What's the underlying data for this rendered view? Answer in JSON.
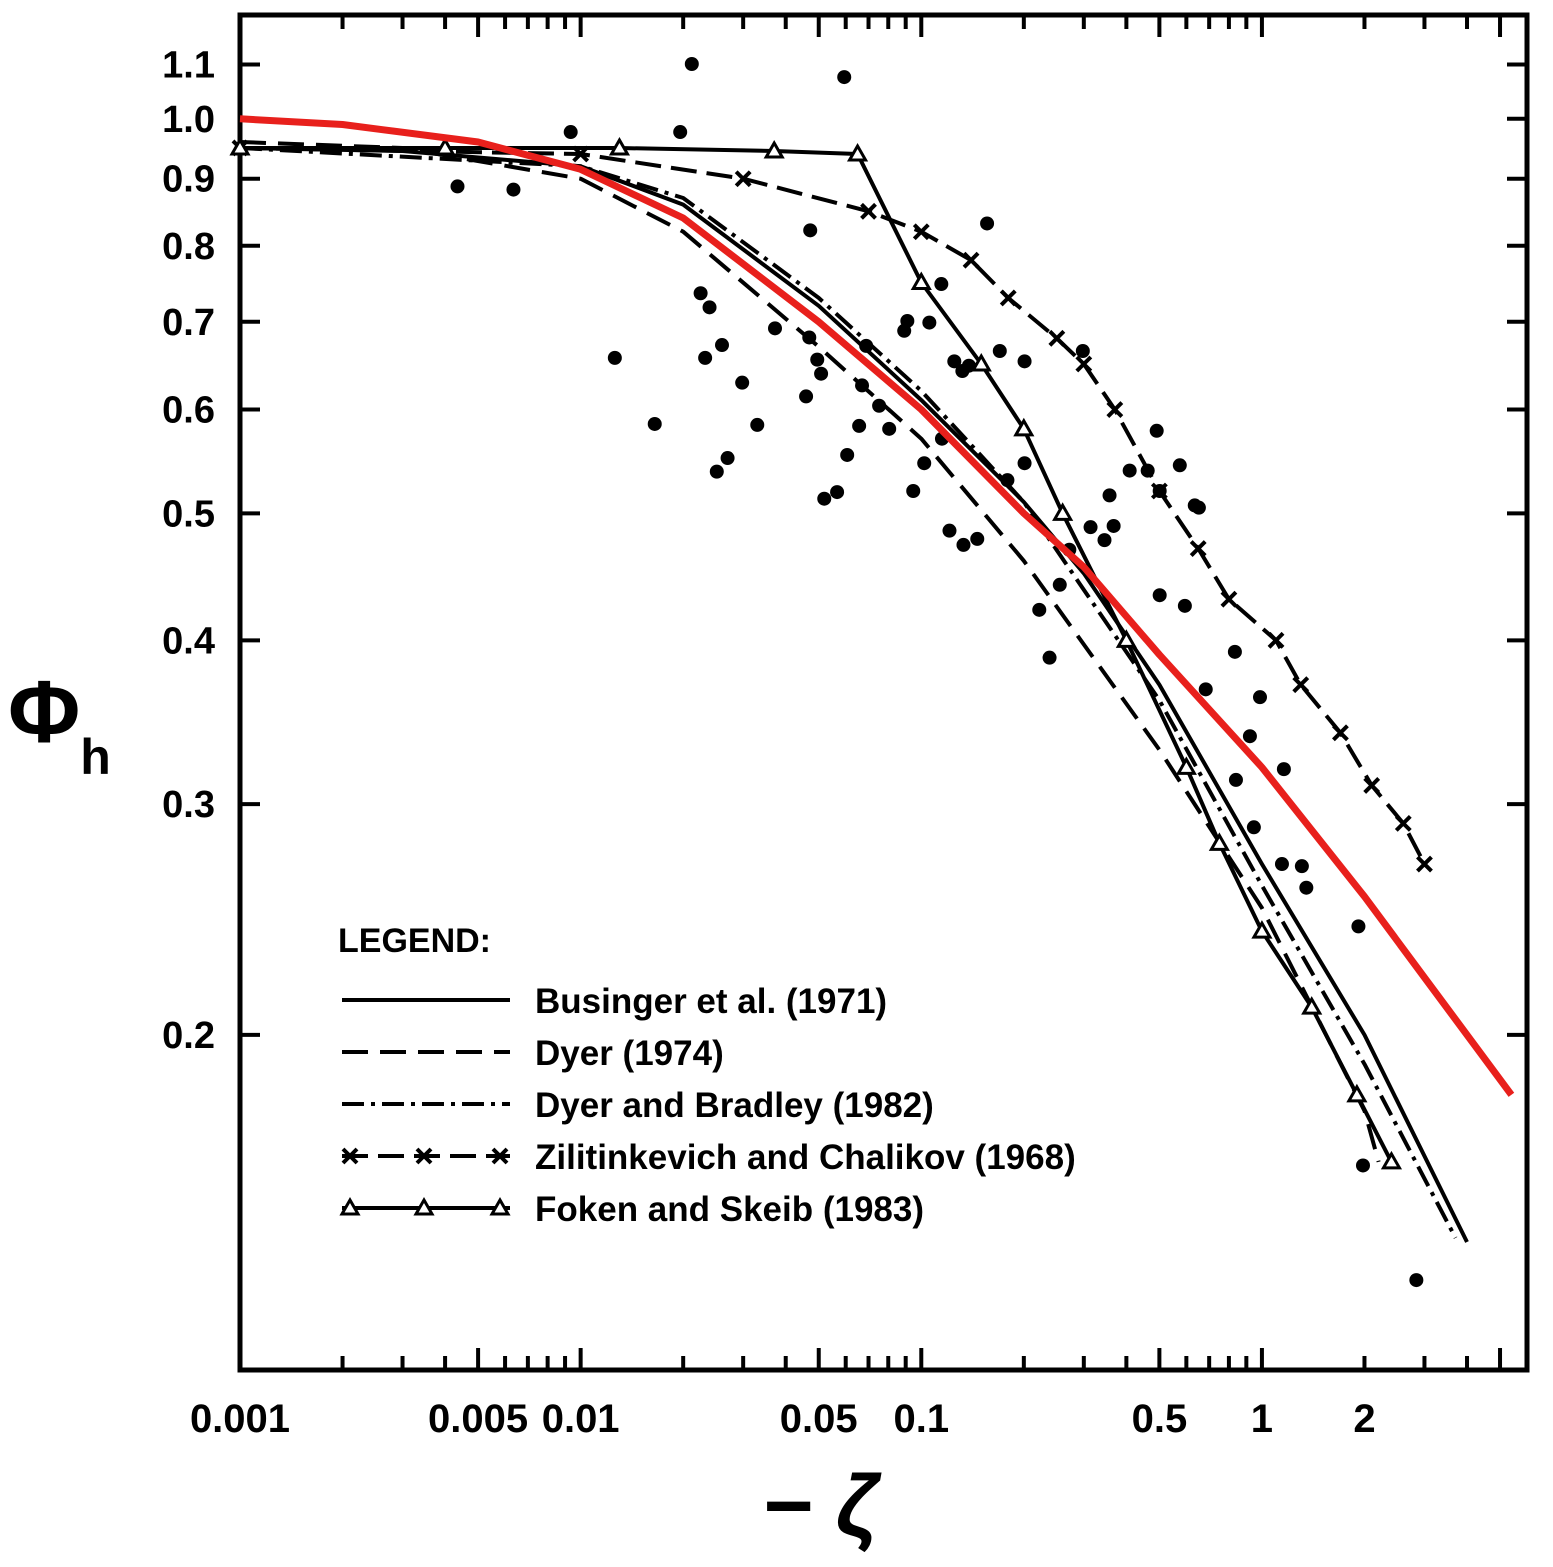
{
  "chart_data": {
    "type": "line",
    "xscale": "log",
    "yscale": "log",
    "xlabel": "− ζ",
    "ylabel": "Φ",
    "ylabel_subscript": "h",
    "xlim": [
      0.001,
      6
    ],
    "ylim": [
      0.111,
      1.2
    ],
    "grid": false,
    "legend_position": "bottom-left",
    "legend_title": "LEGEND:",
    "x_ticks": [
      0.001,
      0.005,
      0.01,
      0.05,
      0.1,
      0.5,
      1,
      2
    ],
    "x_tick_labels": [
      "0.001",
      "0.005",
      "0.01",
      "0.05",
      "0.1",
      "0.5",
      "1",
      "2"
    ],
    "y_ticks": [
      0.2,
      0.3,
      0.4,
      0.5,
      0.6,
      0.7,
      0.8,
      0.9,
      1.0,
      1.1
    ],
    "y_tick_labels": [
      "0.2",
      "0.3",
      "0.4",
      "0.5",
      "0.6",
      "0.7",
      "0.8",
      "0.9",
      "1.0",
      "1.1"
    ],
    "series": [
      {
        "name": "Businger et al. (1971)",
        "style": "solid",
        "color": "#000000",
        "points": [
          [
            0.001,
            0.95
          ],
          [
            0.003,
            0.945
          ],
          [
            0.01,
            0.92
          ],
          [
            0.02,
            0.86
          ],
          [
            0.05,
            0.72
          ],
          [
            0.1,
            0.61
          ],
          [
            0.2,
            0.51
          ],
          [
            0.3,
            0.45
          ],
          [
            0.5,
            0.37
          ],
          [
            1,
            0.27
          ],
          [
            2,
            0.2
          ],
          [
            4,
            0.139
          ]
        ]
      },
      {
        "name": "Dyer (1974)",
        "style": "dashed",
        "color": "#000000",
        "points": [
          [
            0.001,
            0.96
          ],
          [
            0.003,
            0.95
          ],
          [
            0.01,
            0.9
          ],
          [
            0.02,
            0.82
          ],
          [
            0.05,
            0.67
          ],
          [
            0.1,
            0.57
          ],
          [
            0.2,
            0.46
          ],
          [
            0.5,
            0.33
          ],
          [
            1,
            0.25
          ],
          [
            2,
            0.175
          ],
          [
            2.2,
            0.16
          ]
        ]
      },
      {
        "name": "Dyer and Bradley (1982)",
        "style": "dash-dot",
        "color": "#000000",
        "points": [
          [
            0.001,
            0.95
          ],
          [
            0.01,
            0.92
          ],
          [
            0.02,
            0.87
          ],
          [
            0.05,
            0.73
          ],
          [
            0.1,
            0.62
          ],
          [
            0.2,
            0.51
          ],
          [
            0.5,
            0.36
          ],
          [
            1,
            0.26
          ],
          [
            2,
            0.19
          ],
          [
            3.7,
            0.14
          ]
        ]
      },
      {
        "name": "Zilitinkevich and Chalikov (1968)",
        "style": "dashed-x-markers",
        "color": "#000000",
        "points": [
          [
            0.001,
            0.95
          ],
          [
            0.01,
            0.94
          ],
          [
            0.03,
            0.9
          ],
          [
            0.07,
            0.85
          ],
          [
            0.1,
            0.82
          ],
          [
            0.14,
            0.78
          ],
          [
            0.18,
            0.73
          ],
          [
            0.25,
            0.68
          ],
          [
            0.3,
            0.65
          ],
          [
            0.37,
            0.6
          ],
          [
            0.5,
            0.52
          ],
          [
            0.65,
            0.47
          ],
          [
            0.8,
            0.43
          ],
          [
            1.1,
            0.4
          ],
          [
            1.3,
            0.37
          ],
          [
            1.7,
            0.34
          ],
          [
            2.1,
            0.31
          ],
          [
            2.6,
            0.29
          ],
          [
            3.0,
            0.27
          ]
        ]
      },
      {
        "name": "Foken and Skeib (1983)",
        "style": "solid-triangle-markers",
        "color": "#000000",
        "points": [
          [
            0.001,
            0.95
          ],
          [
            0.004,
            0.95
          ],
          [
            0.013,
            0.95
          ],
          [
            0.037,
            0.945
          ],
          [
            0.065,
            0.94
          ],
          [
            0.1,
            0.75
          ],
          [
            0.15,
            0.65
          ],
          [
            0.2,
            0.58
          ],
          [
            0.26,
            0.5
          ],
          [
            0.4,
            0.4
          ],
          [
            0.6,
            0.32
          ],
          [
            0.75,
            0.28
          ],
          [
            1.0,
            0.24
          ],
          [
            1.4,
            0.21
          ],
          [
            1.9,
            0.18
          ],
          [
            2.4,
            0.16
          ]
        ]
      },
      {
        "style": "solid-thick",
        "color": "#e8201c",
        "points": [
          [
            0.001,
            1.0
          ],
          [
            0.002,
            0.99
          ],
          [
            0.005,
            0.96
          ],
          [
            0.01,
            0.915
          ],
          [
            0.02,
            0.84
          ],
          [
            0.05,
            0.7
          ],
          [
            0.1,
            0.6
          ],
          [
            0.2,
            0.5
          ],
          [
            0.3,
            0.455
          ],
          [
            0.5,
            0.39
          ],
          [
            1,
            0.32
          ],
          [
            2,
            0.255
          ],
          [
            5.4,
            0.18
          ]
        ]
      }
    ],
    "scatter": [
      [
        0.00435,
        0.888
      ],
      [
        0.00635,
        0.883
      ],
      [
        0.00935,
        0.977
      ],
      [
        0.0212,
        1.101
      ],
      [
        0.0196,
        0.977
      ],
      [
        0.0594,
        1.076
      ],
      [
        0.0126,
        0.657
      ],
      [
        0.0165,
        0.585
      ],
      [
        0.0225,
        0.736
      ],
      [
        0.0239,
        0.718
      ],
      [
        0.0232,
        0.657
      ],
      [
        0.026,
        0.672
      ],
      [
        0.0298,
        0.629
      ],
      [
        0.033,
        0.584
      ],
      [
        0.0372,
        0.692
      ],
      [
        0.0251,
        0.538
      ],
      [
        0.027,
        0.551
      ],
      [
        0.0472,
        0.822
      ],
      [
        0.0469,
        0.681
      ],
      [
        0.0495,
        0.655
      ],
      [
        0.0508,
        0.639
      ],
      [
        0.0459,
        0.614
      ],
      [
        0.0519,
        0.513
      ],
      [
        0.0566,
        0.519
      ],
      [
        0.0606,
        0.554
      ],
      [
        0.067,
        0.626
      ],
      [
        0.0689,
        0.671
      ],
      [
        0.0657,
        0.583
      ],
      [
        0.0752,
        0.604
      ],
      [
        0.0805,
        0.58
      ],
      [
        0.091,
        0.701
      ],
      [
        0.0891,
        0.689
      ],
      [
        0.1056,
        0.699
      ],
      [
        0.1145,
        0.748
      ],
      [
        0.0947,
        0.52
      ],
      [
        0.102,
        0.546
      ],
      [
        0.115,
        0.57
      ],
      [
        0.121,
        0.485
      ],
      [
        0.133,
        0.473
      ],
      [
        0.146,
        0.478
      ],
      [
        0.156,
        0.832
      ],
      [
        0.125,
        0.653
      ],
      [
        0.132,
        0.642
      ],
      [
        0.138,
        0.648
      ],
      [
        0.17,
        0.665
      ],
      [
        0.201,
        0.546
      ],
      [
        0.238,
        0.388
      ],
      [
        0.222,
        0.422
      ],
      [
        0.255,
        0.441
      ],
      [
        0.298,
        0.665
      ],
      [
        0.314,
        0.488
      ],
      [
        0.357,
        0.516
      ],
      [
        0.345,
        0.477
      ],
      [
        0.367,
        0.489
      ],
      [
        0.409,
        0.539
      ],
      [
        0.462,
        0.539
      ],
      [
        0.491,
        0.578
      ],
      [
        0.501,
        0.52
      ],
      [
        0.574,
        0.544
      ],
      [
        0.635,
        0.507
      ],
      [
        0.501,
        0.433
      ],
      [
        0.594,
        0.425
      ],
      [
        0.653,
        0.505
      ],
      [
        0.684,
        0.367
      ],
      [
        0.833,
        0.392
      ],
      [
        0.987,
        0.362
      ],
      [
        0.922,
        0.338
      ],
      [
        1.16,
        0.319
      ],
      [
        0.839,
        0.313
      ],
      [
        0.947,
        0.288
      ],
      [
        1.145,
        0.27
      ],
      [
        1.35,
        0.259
      ],
      [
        1.31,
        0.269
      ],
      [
        1.92,
        0.242
      ],
      [
        1.98,
        0.159
      ],
      [
        2.84,
        0.13
      ],
      [
        0.272,
        0.469
      ],
      [
        0.179,
        0.53
      ],
      [
        0.201,
        0.653
      ]
    ]
  }
}
